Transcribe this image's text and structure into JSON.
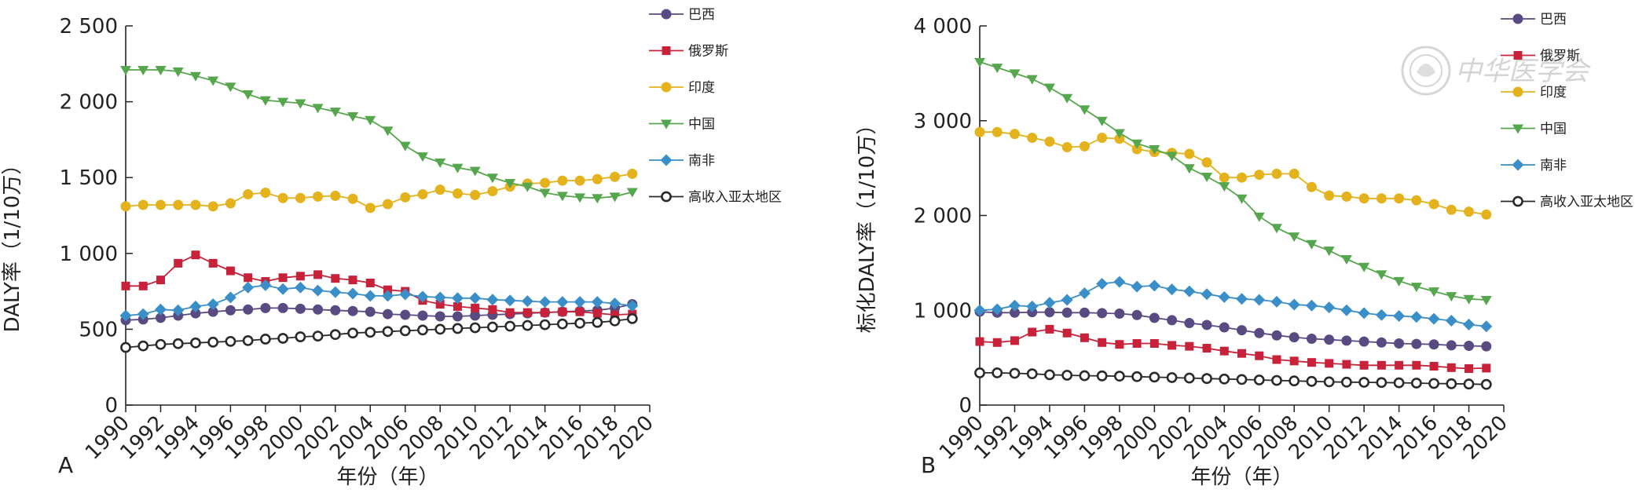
{
  "watermark": {
    "text": "中华医学会"
  },
  "panels": [
    {
      "letter": "A",
      "ylabel": "DALY率（1/10万）",
      "xlabel": "年份（年）"
    },
    {
      "letter": "B",
      "ylabel": "标化DALY率（1/10万）",
      "xlabel": "年份（年）"
    }
  ],
  "chart_data": [
    {
      "type": "line",
      "panel": "A",
      "xlabel": "年份（年）",
      "ylabel": "DALY率（1/10万）",
      "xlim": [
        1990,
        2020
      ],
      "ylim": [
        0,
        2500
      ],
      "xticks": [
        1990,
        1992,
        1994,
        1996,
        1998,
        2000,
        2002,
        2004,
        2006,
        2008,
        2010,
        2012,
        2014,
        2016,
        2018,
        2020
      ],
      "yticks": [
        0,
        500,
        1000,
        1500,
        2000,
        2500
      ],
      "ytick_labels": [
        "0",
        "500",
        "1 000",
        "1 500",
        "2 000",
        "2 500"
      ],
      "grid": false,
      "legend_position": "top-right",
      "x": [
        1990,
        1991,
        1992,
        1993,
        1994,
        1995,
        1996,
        1997,
        1998,
        1999,
        2000,
        2001,
        2002,
        2003,
        2004,
        2005,
        2006,
        2007,
        2008,
        2009,
        2010,
        2011,
        2012,
        2013,
        2014,
        2015,
        2016,
        2017,
        2018,
        2019
      ],
      "series": [
        {
          "name": "巴西",
          "color": "#5a4a82",
          "marker": "circle",
          "values": [
            560,
            565,
            575,
            590,
            605,
            615,
            625,
            630,
            640,
            640,
            635,
            630,
            625,
            620,
            615,
            600,
            595,
            590,
            585,
            585,
            590,
            595,
            600,
            605,
            610,
            615,
            620,
            625,
            640,
            665
          ]
        },
        {
          "name": "俄罗斯",
          "color": "#c8223a",
          "marker": "square",
          "values": [
            785,
            785,
            825,
            935,
            990,
            935,
            885,
            840,
            815,
            840,
            850,
            860,
            835,
            825,
            805,
            760,
            750,
            690,
            665,
            650,
            640,
            630,
            610,
            610,
            610,
            615,
            615,
            605,
            595,
            600
          ]
        },
        {
          "name": "印度",
          "color": "#e3b21c",
          "marker": "circle",
          "values": [
            1310,
            1320,
            1320,
            1320,
            1320,
            1310,
            1330,
            1390,
            1400,
            1365,
            1365,
            1375,
            1380,
            1360,
            1300,
            1325,
            1370,
            1390,
            1420,
            1395,
            1385,
            1410,
            1440,
            1460,
            1465,
            1480,
            1480,
            1490,
            1505,
            1525
          ]
        },
        {
          "name": "中国",
          "color": "#55a64c",
          "marker": "triangle-down",
          "values": [
            2210,
            2210,
            2210,
            2200,
            2170,
            2140,
            2100,
            2050,
            2010,
            2000,
            1990,
            1960,
            1935,
            1905,
            1880,
            1810,
            1710,
            1640,
            1600,
            1565,
            1545,
            1500,
            1465,
            1440,
            1400,
            1380,
            1370,
            1365,
            1375,
            1405
          ]
        },
        {
          "name": "南非",
          "color": "#3a8fc8",
          "marker": "diamond",
          "values": [
            590,
            600,
            630,
            625,
            650,
            665,
            710,
            775,
            790,
            765,
            775,
            755,
            745,
            735,
            720,
            720,
            730,
            715,
            710,
            705,
            705,
            695,
            690,
            685,
            680,
            680,
            680,
            680,
            670,
            655
          ]
        },
        {
          "name": "高收入亚太地区",
          "color": "#2a2a2a",
          "marker": "open-circle",
          "values": [
            380,
            390,
            400,
            405,
            410,
            415,
            420,
            425,
            435,
            440,
            450,
            455,
            465,
            475,
            480,
            485,
            490,
            495,
            500,
            505,
            510,
            515,
            520,
            525,
            530,
            535,
            540,
            545,
            555,
            570
          ]
        }
      ]
    },
    {
      "type": "line",
      "panel": "B",
      "xlabel": "年份（年）",
      "ylabel": "标化DALY率（1/10万）",
      "xlim": [
        1990,
        2020
      ],
      "ylim": [
        0,
        4000
      ],
      "xticks": [
        1990,
        1992,
        1994,
        1996,
        1998,
        2000,
        2002,
        2004,
        2006,
        2008,
        2010,
        2012,
        2014,
        2016,
        2018,
        2020
      ],
      "yticks": [
        0,
        1000,
        2000,
        3000,
        4000
      ],
      "ytick_labels": [
        "0",
        "1 000",
        "2 000",
        "3 000",
        "4 000"
      ],
      "grid": false,
      "legend_position": "top-right",
      "x": [
        1990,
        1991,
        1992,
        1993,
        1994,
        1995,
        1996,
        1997,
        1998,
        1999,
        2000,
        2001,
        2002,
        2003,
        2004,
        2005,
        2006,
        2007,
        2008,
        2009,
        2010,
        2011,
        2012,
        2013,
        2014,
        2015,
        2016,
        2017,
        2018,
        2019
      ],
      "series": [
        {
          "name": "巴西",
          "color": "#5a4a82",
          "marker": "circle",
          "values": [
            985,
            975,
            975,
            980,
            980,
            975,
            975,
            970,
            965,
            950,
            920,
            895,
            865,
            845,
            820,
            790,
            760,
            735,
            715,
            700,
            690,
            680,
            670,
            660,
            650,
            645,
            640,
            630,
            625,
            620
          ]
        },
        {
          "name": "俄罗斯",
          "color": "#c8223a",
          "marker": "square",
          "values": [
            670,
            660,
            680,
            770,
            800,
            760,
            710,
            660,
            640,
            650,
            650,
            630,
            620,
            600,
            570,
            545,
            520,
            480,
            465,
            450,
            440,
            430,
            420,
            420,
            420,
            420,
            410,
            395,
            385,
            390
          ]
        },
        {
          "name": "印度",
          "color": "#e3b21c",
          "marker": "circle",
          "values": [
            2880,
            2880,
            2860,
            2820,
            2780,
            2720,
            2730,
            2820,
            2810,
            2700,
            2670,
            2660,
            2650,
            2560,
            2400,
            2400,
            2430,
            2440,
            2440,
            2300,
            2210,
            2200,
            2180,
            2180,
            2180,
            2160,
            2120,
            2060,
            2040,
            2010
          ]
        },
        {
          "name": "中国",
          "color": "#55a64c",
          "marker": "triangle-down",
          "values": [
            3620,
            3560,
            3500,
            3440,
            3350,
            3240,
            3120,
            3000,
            2870,
            2760,
            2700,
            2630,
            2500,
            2410,
            2310,
            2180,
            1990,
            1870,
            1780,
            1700,
            1630,
            1540,
            1460,
            1380,
            1310,
            1250,
            1200,
            1150,
            1120,
            1110
          ]
        },
        {
          "name": "南非",
          "color": "#3a8fc8",
          "marker": "diamond",
          "values": [
            1000,
            1010,
            1050,
            1040,
            1080,
            1110,
            1180,
            1280,
            1300,
            1250,
            1260,
            1220,
            1200,
            1170,
            1140,
            1120,
            1110,
            1090,
            1060,
            1050,
            1030,
            1000,
            970,
            950,
            940,
            930,
            910,
            890,
            850,
            830
          ]
        },
        {
          "name": "高收入亚太地区",
          "color": "#2a2a2a",
          "marker": "open-circle",
          "values": [
            340,
            340,
            335,
            330,
            320,
            315,
            310,
            308,
            305,
            300,
            295,
            290,
            285,
            280,
            275,
            270,
            265,
            260,
            255,
            250,
            245,
            242,
            240,
            238,
            235,
            232,
            228,
            225,
            222,
            218
          ]
        }
      ]
    }
  ]
}
